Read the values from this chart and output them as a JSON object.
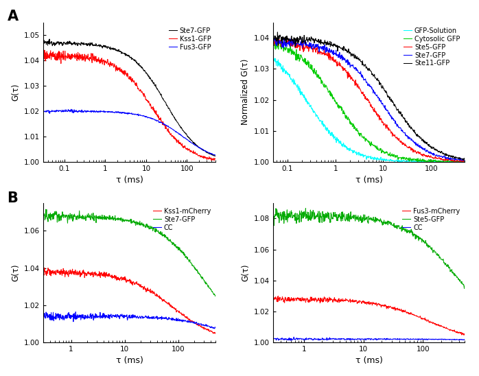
{
  "fig_bg": "#ffffff",
  "panel_A_left": {
    "ylabel": "G(τ)",
    "xlabel": "τ (ms)",
    "ylim": [
      1.0,
      1.055
    ],
    "xlim": [
      0.03,
      500
    ],
    "yticks": [
      1.0,
      1.01,
      1.02,
      1.03,
      1.04,
      1.05
    ],
    "series": [
      {
        "label": "Ste7-GFP",
        "color": "#000000",
        "tD": 30.0,
        "G0": 0.047,
        "noise_amp": 0.0005,
        "S": 6
      },
      {
        "label": "Kss1-GFP",
        "color": "#ff0000",
        "tD": 15.0,
        "G0": 0.042,
        "noise_amp": 0.0012,
        "S": 6
      },
      {
        "label": "Fus3-GFP",
        "color": "#0000ff",
        "tD": 80.0,
        "G0": 0.02,
        "noise_amp": 0.0003,
        "S": 6
      }
    ]
  },
  "panel_A_right": {
    "ylabel": "Normalized G(τ)",
    "xlabel": "τ (ms)",
    "ylim": [
      1.0,
      1.045
    ],
    "xlim": [
      0.05,
      500
    ],
    "yticks": [
      1.0,
      1.01,
      1.02,
      1.03,
      1.04
    ],
    "series": [
      {
        "label": "GFP-Solution",
        "color": "#00ffff",
        "tD": 0.25,
        "G0": 0.04,
        "noise_amp": 0.0006,
        "S": 6
      },
      {
        "label": "Cytosolic GFP",
        "color": "#00cc00",
        "tD": 1.0,
        "G0": 0.04,
        "noise_amp": 0.0008,
        "S": 6
      },
      {
        "label": "Ste5-GFP",
        "color": "#ff0000",
        "tD": 5.0,
        "G0": 0.039,
        "noise_amp": 0.0008,
        "S": 6
      },
      {
        "label": "Ste7-GFP",
        "color": "#0000ff",
        "tD": 9.0,
        "G0": 0.039,
        "noise_amp": 0.0008,
        "S": 6
      },
      {
        "label": "Ste11-GFP",
        "color": "#000000",
        "tD": 15.0,
        "G0": 0.04,
        "noise_amp": 0.0008,
        "S": 6
      }
    ]
  },
  "panel_B_left": {
    "ylabel": "G(τ)",
    "xlabel": "τ (ms)",
    "ylim": [
      1.0,
      1.075
    ],
    "xlim": [
      0.3,
      500
    ],
    "yticks": [
      1.0,
      1.02,
      1.04,
      1.06
    ],
    "series": [
      {
        "label": "Kss1-mCherry",
        "color": "#ff0000",
        "tD": 80.0,
        "G0": 0.038,
        "noise_amp": 0.0012,
        "S": 6
      },
      {
        "label": "Ste7-GFP",
        "color": "#00aa00",
        "tD": 300.0,
        "G0": 0.068,
        "noise_amp": 0.0015,
        "S": 6
      },
      {
        "label": "CC",
        "color": "#0000ff",
        "tD": 600.0,
        "G0": 0.014,
        "noise_amp": 0.0012,
        "S": 6
      }
    ]
  },
  "panel_B_right": {
    "ylabel": "G(τ)",
    "xlabel": "τ (ms)",
    "ylim": [
      1.0,
      1.09
    ],
    "xlim": [
      0.3,
      500
    ],
    "yticks": [
      1.0,
      1.02,
      1.04,
      1.06,
      1.08
    ],
    "series": [
      {
        "label": "Fus3-mCherry",
        "color": "#ff0000",
        "tD": 120.0,
        "G0": 0.028,
        "noise_amp": 0.0012,
        "S": 6
      },
      {
        "label": "Ste5-GFP",
        "color": "#00aa00",
        "tD": 400.0,
        "G0": 0.082,
        "noise_amp": 0.0025,
        "S": 6
      },
      {
        "label": "CC",
        "color": "#0000ff",
        "tD": 2000.0,
        "G0": 0.002,
        "noise_amp": 0.0005,
        "S": 6
      }
    ]
  }
}
